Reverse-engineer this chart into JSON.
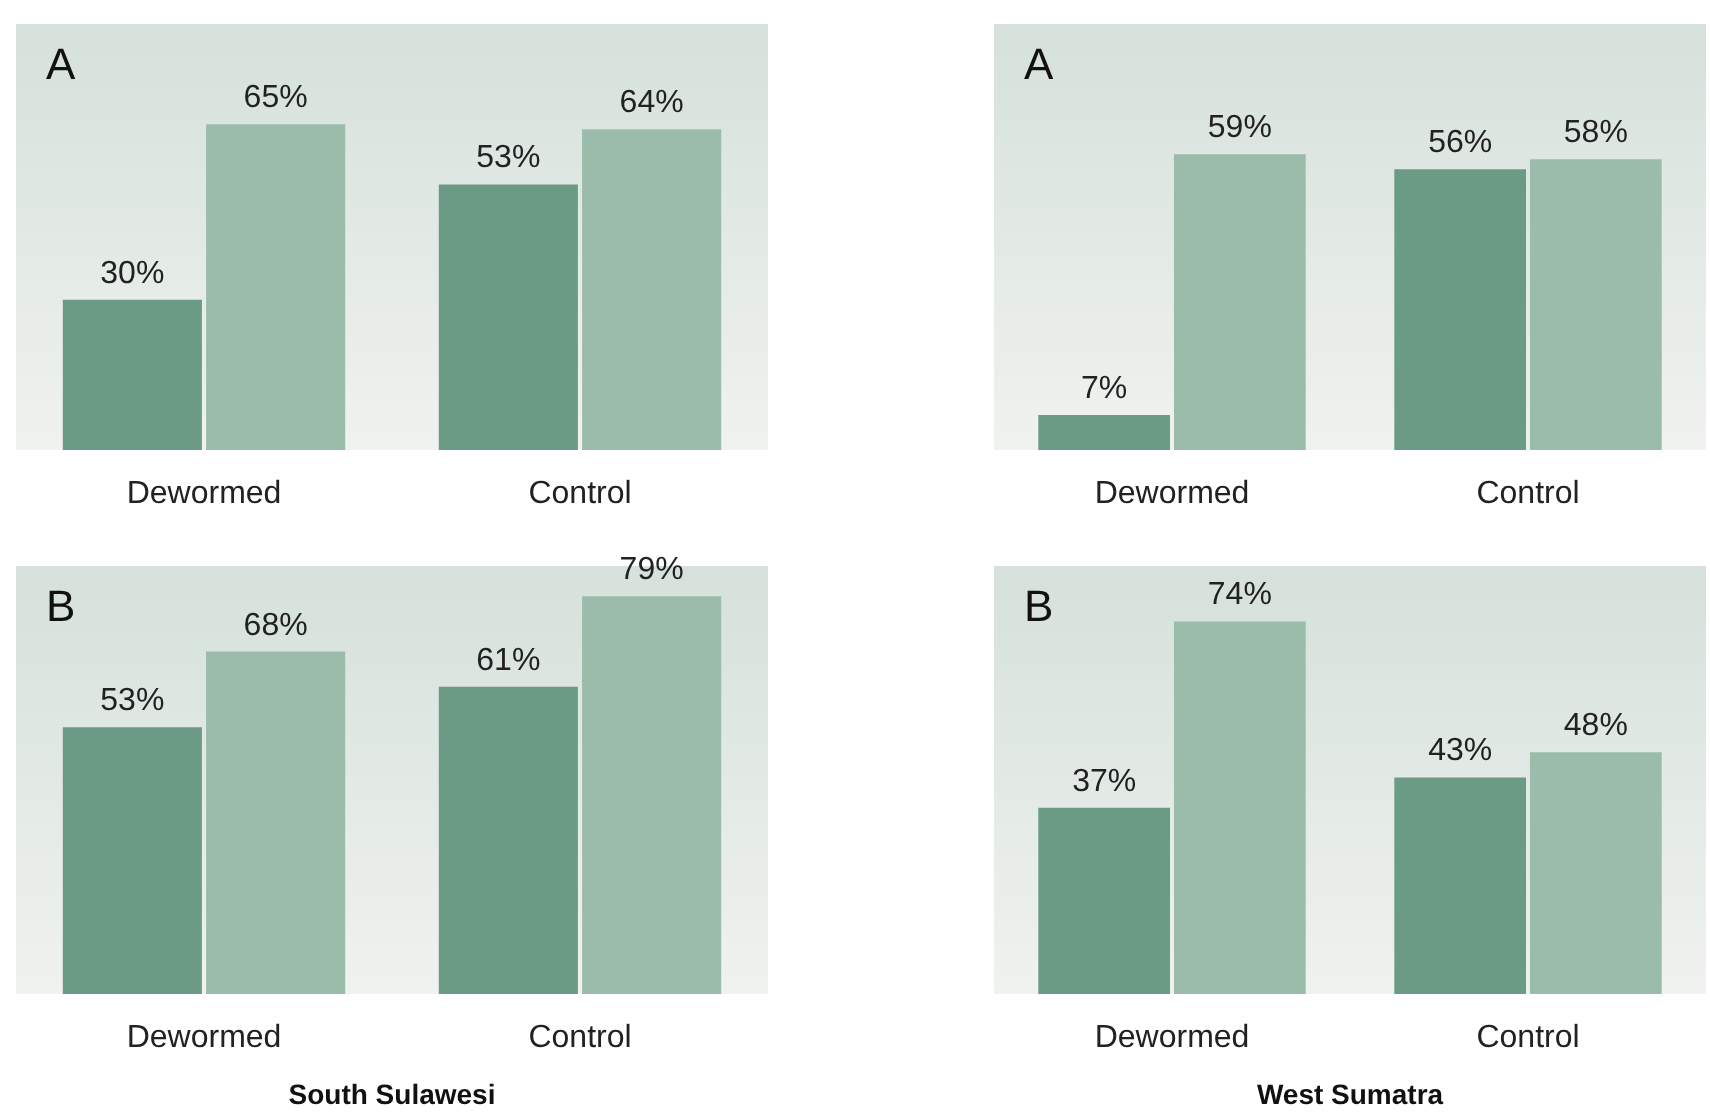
{
  "chart_data": [
    {
      "type": "bar",
      "title": "A",
      "categories": [
        "Dewormed",
        "Control"
      ],
      "ylim": [
        0,
        85
      ],
      "series": [
        {
          "color": "#6b9b85",
          "values": [
            30,
            53
          ],
          "value_labels": [
            "30%",
            "53%"
          ]
        },
        {
          "color": "#9bbcaa",
          "values": [
            65,
            64
          ],
          "value_labels": [
            "65%",
            "64%"
          ]
        }
      ]
    },
    {
      "type": "bar",
      "title": "A",
      "categories": [
        "Dewormed",
        "Control"
      ],
      "ylim": [
        0,
        85
      ],
      "series": [
        {
          "color": "#6b9b85",
          "values": [
            7,
            56
          ],
          "value_labels": [
            "7%",
            "56%"
          ]
        },
        {
          "color": "#9bbcaa",
          "values": [
            59,
            58
          ],
          "value_labels": [
            "59%",
            "58%"
          ]
        }
      ]
    },
    {
      "type": "bar",
      "title": "B",
      "xlabel": "South Sulawesi",
      "categories": [
        "Dewormed",
        "Control"
      ],
      "ylim": [
        0,
        85
      ],
      "series": [
        {
          "color": "#6b9b85",
          "values": [
            53,
            61
          ],
          "value_labels": [
            "53%",
            "61%"
          ]
        },
        {
          "color": "#9bbcaa",
          "values": [
            68,
            79
          ],
          "value_labels": [
            "68%",
            "79%"
          ]
        }
      ]
    },
    {
      "type": "bar",
      "title": "B",
      "xlabel": "West Sumatra",
      "categories": [
        "Dewormed",
        "Control"
      ],
      "ylim": [
        0,
        85
      ],
      "series": [
        {
          "color": "#6b9b85",
          "values": [
            37,
            43
          ],
          "value_labels": [
            "37%",
            "43%"
          ]
        },
        {
          "color": "#9bbcaa",
          "values": [
            74,
            48
          ],
          "value_labels": [
            "74%",
            "48%"
          ]
        }
      ]
    }
  ]
}
